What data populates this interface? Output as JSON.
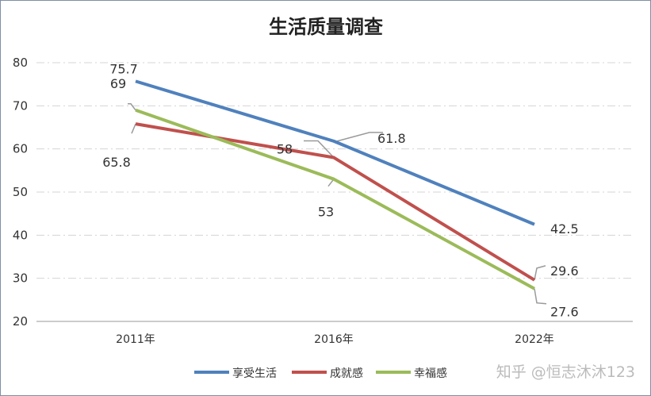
{
  "chart_data": {
    "type": "line",
    "title": "生活质量调查",
    "categories": [
      "2011年",
      "2016年",
      "2022年"
    ],
    "ylim": [
      20,
      80
    ],
    "yticks": [
      20,
      30,
      40,
      50,
      60,
      70,
      80
    ],
    "grid": "horizontal dash-dot",
    "legend": "bottom-right",
    "series": [
      {
        "name": "享受生活",
        "color": "#4f81bd",
        "values": [
          75.7,
          61.8,
          42.5
        ],
        "labels": [
          "75.7",
          "61.8",
          "42.5"
        ]
      },
      {
        "name": "成就感",
        "color": "#c0504d",
        "values": [
          65.8,
          58,
          29.6
        ],
        "labels": [
          "65.8",
          "58",
          "29.6"
        ]
      },
      {
        "name": "幸福感",
        "color": "#9bbb59",
        "values": [
          69,
          53,
          27.6
        ],
        "labels": [
          "69",
          "53",
          "27.6"
        ]
      }
    ]
  },
  "watermark": "知乎 @恒志沐沐123"
}
